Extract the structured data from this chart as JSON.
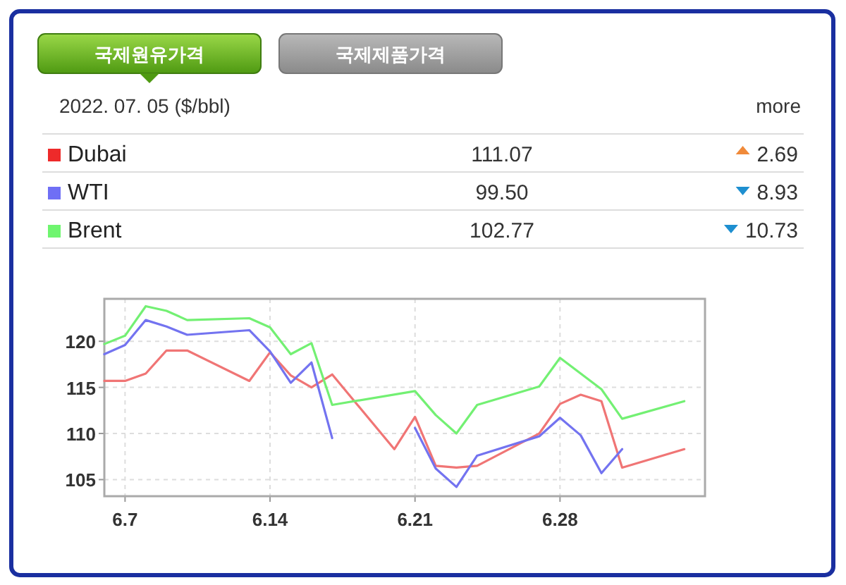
{
  "chart_data": [
    {
      "type": "other",
      "title": "2022. 07. 05 ($/bbl)",
      "annotations": [
        "국제원유가격",
        "국제제품가격",
        "more"
      ],
      "categories": [
        "Dubai",
        "WTI",
        "Brent"
      ],
      "colors": [
        "#ee2a2a",
        "#6f6ff5",
        "#6ff56f"
      ],
      "data_labels": true,
      "series": [
        {
          "values": [
            111.07,
            99.5,
            102.77
          ],
          "value_labels": [
            "111.07",
            "99.50",
            "102.77"
          ]
        },
        {
          "values": [
            2.69,
            8.93,
            10.73
          ],
          "value_labels": [
            "2.69",
            "8.93",
            "10.73"
          ],
          "colors": [
            "#f08a3a",
            "#1e8fd0",
            "#1e8fd0"
          ]
        }
      ]
    },
    {
      "type": "line",
      "xlim": [
        "2022-06-06",
        "2022-07-05"
      ],
      "ylim": [
        103.2,
        124.6
      ],
      "yticks": [
        105,
        110,
        115,
        120
      ],
      "grid": true,
      "line_style": "solid",
      "xticks": [
        {
          "value": "2022-06-07",
          "label": "6.7"
        },
        {
          "value": "2022-06-14",
          "label": "6.14"
        },
        {
          "value": "2022-06-21",
          "label": "6.21"
        },
        {
          "value": "2022-06-28",
          "label": "6.28"
        }
      ],
      "series": [
        {
          "color": "#f07575",
          "x": [
            "2022-06-06",
            "2022-06-07",
            "2022-06-08",
            "2022-06-09",
            "2022-06-10",
            "2022-06-13",
            "2022-06-14",
            "2022-06-15",
            "2022-06-16",
            "2022-06-17",
            "2022-06-20",
            "2022-06-21",
            "2022-06-22",
            "2022-06-23",
            "2022-06-24",
            "2022-06-27",
            "2022-06-28",
            "2022-06-29",
            "2022-06-30",
            "2022-07-01",
            "2022-07-04"
          ],
          "values": [
            115.7,
            115.7,
            116.5,
            119.0,
            119.0,
            115.7,
            118.8,
            116.3,
            115.0,
            116.4,
            108.3,
            111.8,
            106.5,
            106.3,
            106.5,
            110.0,
            113.2,
            114.2,
            113.5,
            106.3,
            108.3
          ]
        },
        {
          "color": "#7373f0",
          "x": [
            "2022-06-06",
            "2022-06-07",
            "2022-06-08",
            "2022-06-09",
            "2022-06-10",
            "2022-06-13",
            "2022-06-14",
            "2022-06-15",
            "2022-06-16",
            "2022-06-17",
            "2022-06-20",
            "2022-06-21",
            "2022-06-22",
            "2022-06-23",
            "2022-06-24",
            "2022-06-27",
            "2022-06-28",
            "2022-06-29",
            "2022-06-30",
            "2022-07-01"
          ],
          "values": [
            118.6,
            119.6,
            122.3,
            121.6,
            120.7,
            121.2,
            118.9,
            115.5,
            117.7,
            109.5,
            null,
            110.6,
            106.2,
            104.2,
            107.6,
            109.7,
            111.7,
            109.8,
            105.7,
            108.3
          ]
        },
        {
          "color": "#73f073",
          "x": [
            "2022-06-06",
            "2022-06-07",
            "2022-06-08",
            "2022-06-09",
            "2022-06-10",
            "2022-06-13",
            "2022-06-14",
            "2022-06-15",
            "2022-06-16",
            "2022-06-17",
            "2022-06-21",
            "2022-06-22",
            "2022-06-23",
            "2022-06-24",
            "2022-06-27",
            "2022-06-28",
            "2022-06-30",
            "2022-07-01",
            "2022-07-04"
          ],
          "values": [
            119.7,
            120.6,
            123.8,
            123.3,
            122.3,
            122.5,
            121.5,
            118.6,
            119.8,
            113.1,
            114.6,
            112.0,
            110.0,
            113.1,
            115.1,
            118.2,
            114.8,
            111.6,
            113.5
          ]
        }
      ]
    }
  ]
}
